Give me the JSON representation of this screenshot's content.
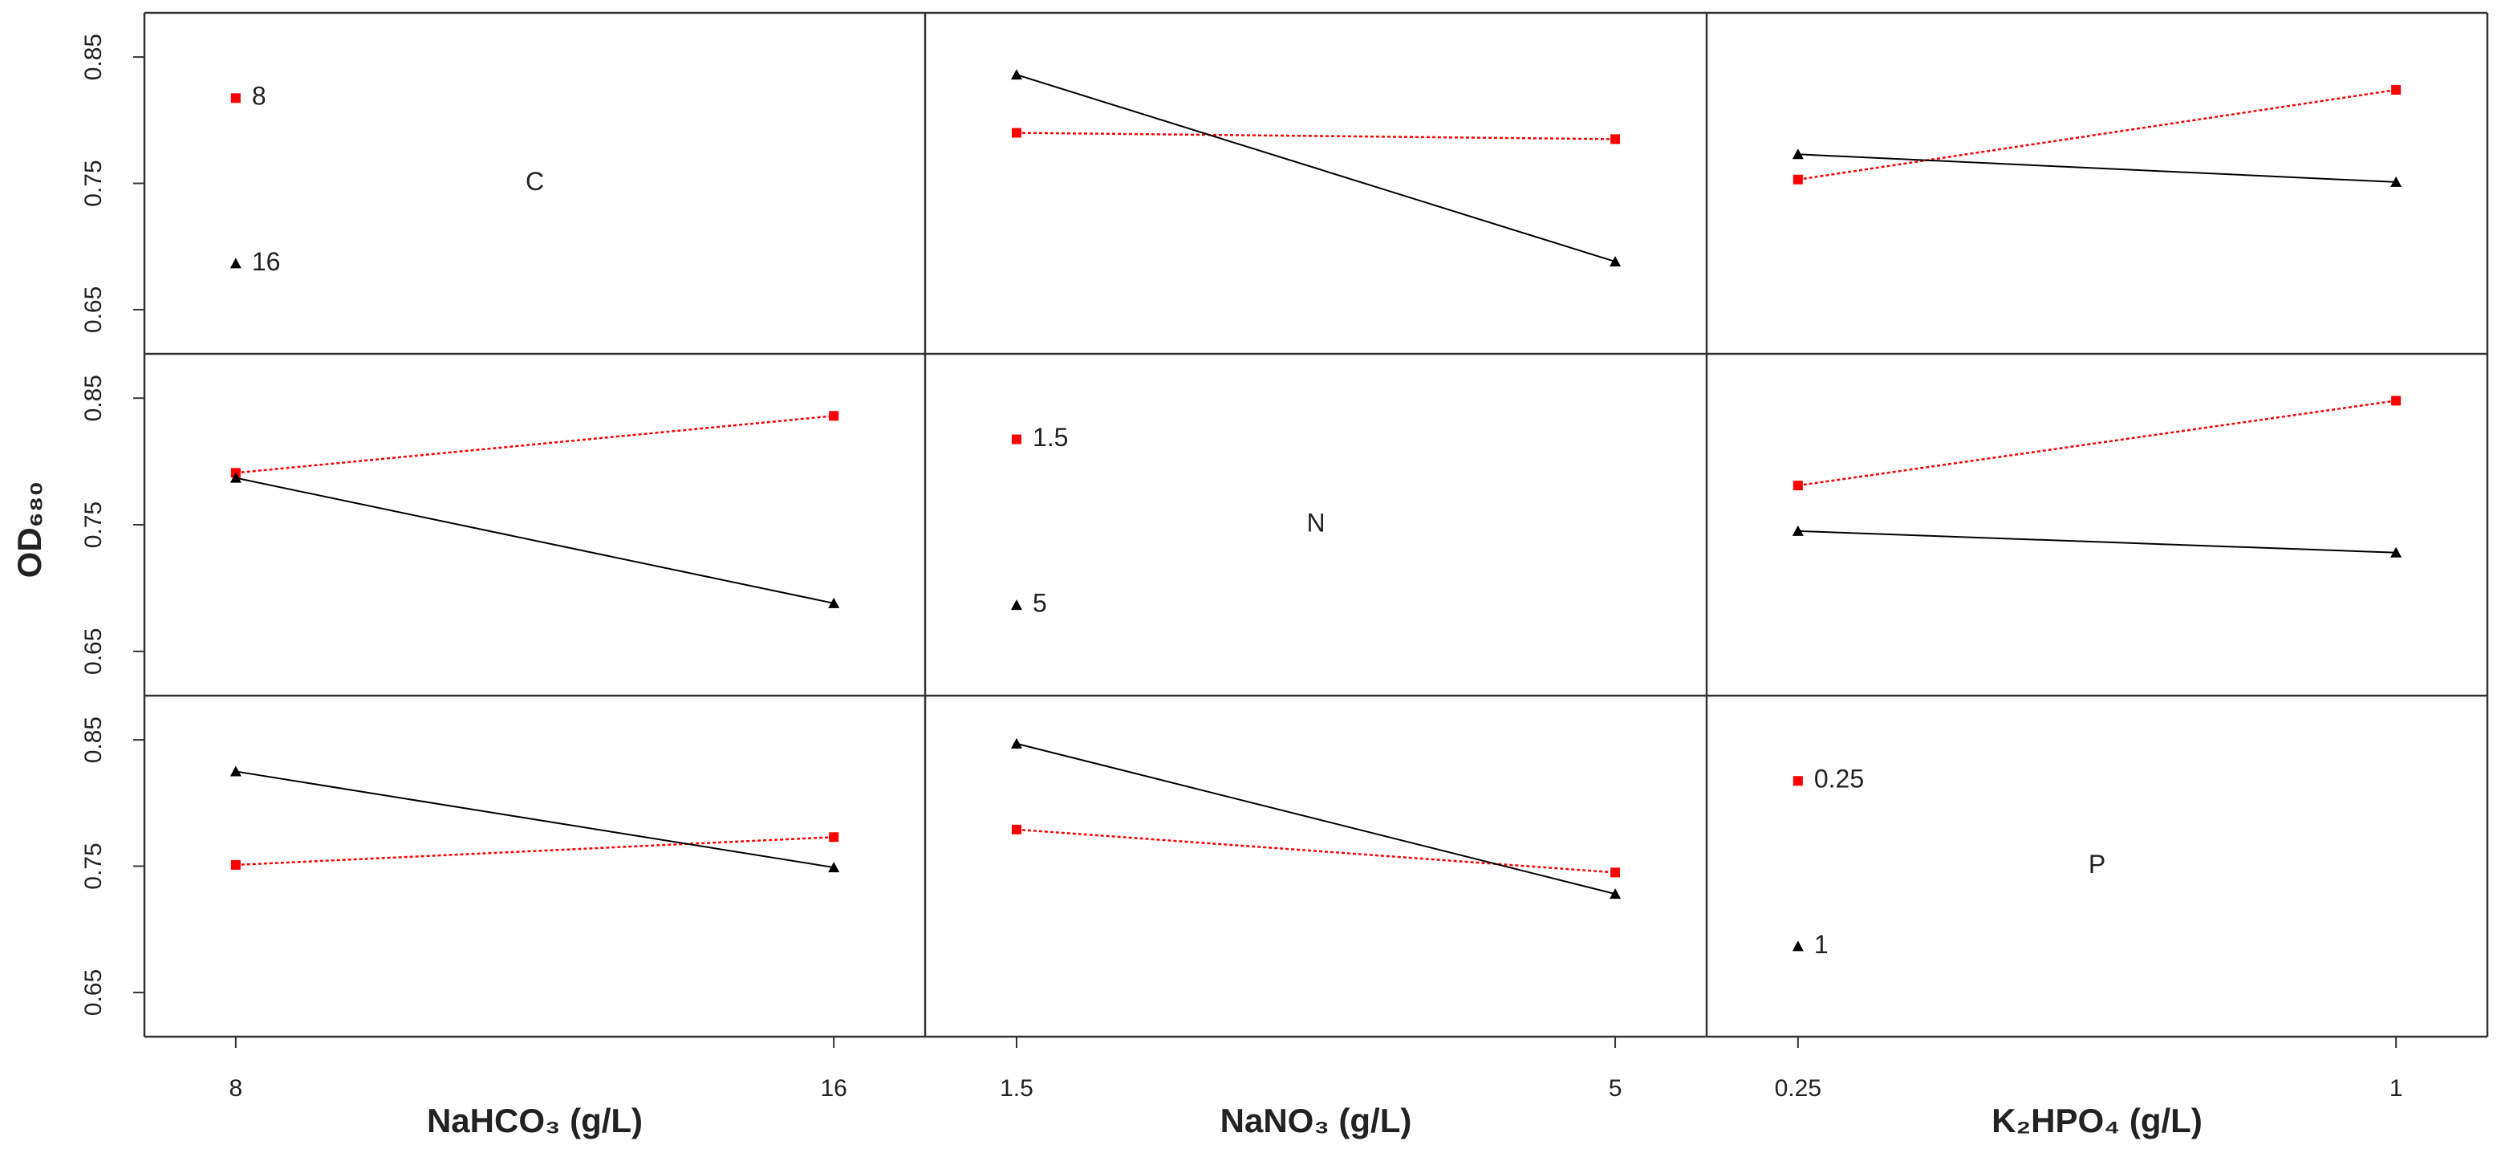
{
  "chart_data": {
    "type": "interaction-matrix",
    "y_label": "OD₆₈₀",
    "ylim": [
      0.615,
      0.885
    ],
    "yticks": [
      0.65,
      0.75,
      0.85
    ],
    "colors": [
      "#ff0000",
      "#000000"
    ],
    "factor_color": "#0000ff",
    "factors": [
      {
        "name": "C",
        "axis_label": "NaHCO₃ (g/L)",
        "levels": [
          8,
          16
        ]
      },
      {
        "name": "N",
        "axis_label": "NaNO₃ (g/L)",
        "levels": [
          1.5,
          5
        ]
      },
      {
        "name": "P",
        "axis_label": "K₂HPO₄ (g/L)",
        "levels": [
          0.25,
          1
        ]
      }
    ],
    "panels": [
      [
        null,
        {
          "series": [
            {
              "values": [
                0.79,
                0.785
              ]
            },
            {
              "values": [
                0.836,
                0.688
              ]
            }
          ]
        },
        {
          "series": [
            {
              "values": [
                0.753,
                0.824
              ]
            },
            {
              "values": [
                0.773,
                0.751
              ]
            }
          ]
        }
      ],
      [
        {
          "series": [
            {
              "values": [
                0.791,
                0.836
              ]
            },
            {
              "values": [
                0.787,
                0.688
              ]
            }
          ]
        },
        null,
        {
          "series": [
            {
              "values": [
                0.781,
                0.848
              ]
            },
            {
              "values": [
                0.745,
                0.728
              ]
            }
          ]
        }
      ],
      [
        {
          "series": [
            {
              "values": [
                0.751,
                0.773
              ]
            },
            {
              "values": [
                0.825,
                0.749
              ]
            }
          ]
        },
        {
          "series": [
            {
              "values": [
                0.779,
                0.745
              ]
            },
            {
              "values": [
                0.847,
                0.728
              ]
            }
          ]
        },
        null
      ]
    ]
  }
}
